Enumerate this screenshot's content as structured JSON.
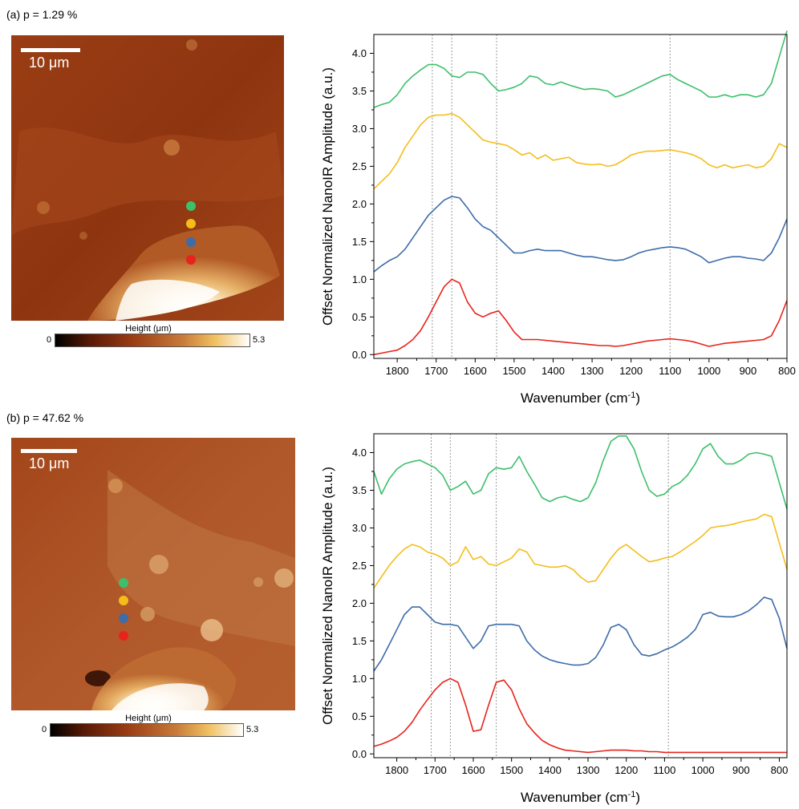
{
  "panels": [
    {
      "label": "(a) p = 1.29 %",
      "scalebar_label": "10 μm",
      "colorbar": {
        "title": "Height (μm)",
        "min": "0",
        "max": "5.3"
      },
      "markers": [
        "#3dbf6b",
        "#f4bd1a",
        "#3d6ca8",
        "#e8231b"
      ]
    },
    {
      "label": "(b) p = 47.62 %",
      "scalebar_label": "10 μm",
      "colorbar": {
        "title": "Height (μm)",
        "min": "0",
        "max": "5.3"
      },
      "markers": [
        "#3dbf6b",
        "#f4bd1a",
        "#3d6ca8",
        "#e8231b"
      ]
    }
  ],
  "chart_data": [
    {
      "type": "line",
      "xlabel": "Wavenumber (cm-1)",
      "ylabel": "Offset Normalized NanoIR Amplitude (a.u.)",
      "xlim": [
        1860,
        800
      ],
      "ylim": [
        -0.05,
        4.25
      ],
      "xticks": [
        1800,
        1700,
        1600,
        1500,
        1400,
        1300,
        1200,
        1100,
        1000,
        900,
        800
      ],
      "yticks": [
        0.0,
        0.5,
        1.0,
        1.5,
        2.0,
        2.5,
        3.0,
        3.5,
        4.0
      ],
      "vlines": [
        1710,
        1660,
        1545,
        1100
      ],
      "x": [
        1860,
        1840,
        1820,
        1800,
        1780,
        1760,
        1740,
        1720,
        1700,
        1680,
        1660,
        1640,
        1620,
        1600,
        1580,
        1560,
        1540,
        1520,
        1500,
        1480,
        1460,
        1440,
        1420,
        1400,
        1380,
        1360,
        1340,
        1320,
        1300,
        1280,
        1260,
        1240,
        1220,
        1200,
        1180,
        1160,
        1140,
        1120,
        1100,
        1080,
        1060,
        1040,
        1020,
        1000,
        980,
        960,
        940,
        920,
        900,
        880,
        860,
        840,
        820,
        800
      ],
      "series": [
        {
          "color": "#e8231b",
          "values": [
            0.0,
            0.02,
            0.04,
            0.06,
            0.12,
            0.2,
            0.32,
            0.5,
            0.7,
            0.9,
            1.0,
            0.95,
            0.7,
            0.55,
            0.5,
            0.55,
            0.58,
            0.45,
            0.3,
            0.2,
            0.2,
            0.2,
            0.19,
            0.18,
            0.17,
            0.16,
            0.15,
            0.14,
            0.13,
            0.12,
            0.12,
            0.11,
            0.12,
            0.14,
            0.16,
            0.18,
            0.19,
            0.2,
            0.21,
            0.2,
            0.19,
            0.17,
            0.14,
            0.11,
            0.13,
            0.15,
            0.16,
            0.17,
            0.18,
            0.19,
            0.2,
            0.25,
            0.45,
            0.72
          ]
        },
        {
          "color": "#3d6ca8",
          "values": [
            1.1,
            1.18,
            1.25,
            1.3,
            1.4,
            1.55,
            1.7,
            1.85,
            1.95,
            2.05,
            2.1,
            2.08,
            1.95,
            1.8,
            1.7,
            1.65,
            1.55,
            1.45,
            1.35,
            1.35,
            1.38,
            1.4,
            1.38,
            1.38,
            1.38,
            1.35,
            1.32,
            1.3,
            1.3,
            1.28,
            1.26,
            1.25,
            1.26,
            1.3,
            1.35,
            1.38,
            1.4,
            1.42,
            1.43,
            1.42,
            1.4,
            1.35,
            1.3,
            1.22,
            1.25,
            1.28,
            1.3,
            1.3,
            1.28,
            1.27,
            1.25,
            1.35,
            1.55,
            1.8
          ]
        },
        {
          "color": "#f4bd1a",
          "values": [
            2.2,
            2.3,
            2.4,
            2.55,
            2.75,
            2.9,
            3.05,
            3.15,
            3.18,
            3.18,
            3.2,
            3.15,
            3.05,
            2.95,
            2.85,
            2.82,
            2.8,
            2.78,
            2.72,
            2.65,
            2.68,
            2.6,
            2.65,
            2.58,
            2.6,
            2.62,
            2.55,
            2.53,
            2.52,
            2.53,
            2.5,
            2.52,
            2.58,
            2.65,
            2.68,
            2.7,
            2.7,
            2.71,
            2.72,
            2.7,
            2.68,
            2.65,
            2.6,
            2.52,
            2.48,
            2.52,
            2.48,
            2.5,
            2.52,
            2.48,
            2.5,
            2.6,
            2.8,
            2.75
          ]
        },
        {
          "color": "#3dbf6b",
          "values": [
            3.28,
            3.32,
            3.35,
            3.45,
            3.6,
            3.7,
            3.78,
            3.85,
            3.85,
            3.8,
            3.7,
            3.68,
            3.75,
            3.75,
            3.72,
            3.6,
            3.5,
            3.52,
            3.55,
            3.6,
            3.7,
            3.68,
            3.6,
            3.58,
            3.62,
            3.58,
            3.55,
            3.52,
            3.53,
            3.52,
            3.5,
            3.42,
            3.45,
            3.5,
            3.55,
            3.6,
            3.65,
            3.7,
            3.72,
            3.65,
            3.6,
            3.55,
            3.5,
            3.42,
            3.42,
            3.45,
            3.42,
            3.45,
            3.45,
            3.42,
            3.45,
            3.6,
            3.95,
            4.3
          ]
        }
      ]
    },
    {
      "type": "line",
      "xlabel": "Wavenumber (cm-1)",
      "ylabel": "Offset Normalized NanoIR Amplitude (a.u.)",
      "xlim": [
        1860,
        780
      ],
      "ylim": [
        -0.05,
        4.25
      ],
      "xticks": [
        1800,
        1700,
        1600,
        1500,
        1400,
        1300,
        1200,
        1100,
        1000,
        900,
        800
      ],
      "yticks": [
        0.0,
        0.5,
        1.0,
        1.5,
        2.0,
        2.5,
        3.0,
        3.5,
        4.0
      ],
      "vlines": [
        1710,
        1660,
        1540,
        1090
      ],
      "x": [
        1860,
        1840,
        1820,
        1800,
        1780,
        1760,
        1740,
        1720,
        1700,
        1680,
        1660,
        1640,
        1620,
        1600,
        1580,
        1560,
        1540,
        1520,
        1500,
        1480,
        1460,
        1440,
        1420,
        1400,
        1380,
        1360,
        1340,
        1320,
        1300,
        1280,
        1260,
        1240,
        1220,
        1200,
        1180,
        1160,
        1140,
        1120,
        1100,
        1080,
        1060,
        1040,
        1020,
        1000,
        980,
        960,
        940,
        920,
        900,
        880,
        860,
        840,
        820,
        800,
        780
      ],
      "series": [
        {
          "color": "#e8231b",
          "values": [
            0.1,
            0.13,
            0.17,
            0.22,
            0.3,
            0.42,
            0.58,
            0.72,
            0.85,
            0.95,
            1.0,
            0.95,
            0.65,
            0.3,
            0.32,
            0.65,
            0.95,
            0.98,
            0.85,
            0.6,
            0.4,
            0.28,
            0.18,
            0.12,
            0.08,
            0.05,
            0.04,
            0.03,
            0.02,
            0.03,
            0.04,
            0.05,
            0.05,
            0.05,
            0.04,
            0.04,
            0.03,
            0.03,
            0.02,
            0.02,
            0.02,
            0.02,
            0.02,
            0.02,
            0.02,
            0.02,
            0.02,
            0.02,
            0.02,
            0.02,
            0.02,
            0.02,
            0.02,
            0.02,
            0.02
          ]
        },
        {
          "color": "#3d6ca8",
          "values": [
            1.1,
            1.25,
            1.45,
            1.65,
            1.85,
            1.95,
            1.95,
            1.85,
            1.75,
            1.72,
            1.72,
            1.7,
            1.55,
            1.4,
            1.5,
            1.7,
            1.72,
            1.72,
            1.72,
            1.7,
            1.5,
            1.38,
            1.3,
            1.25,
            1.22,
            1.2,
            1.18,
            1.18,
            1.2,
            1.28,
            1.45,
            1.68,
            1.72,
            1.65,
            1.45,
            1.32,
            1.3,
            1.33,
            1.38,
            1.42,
            1.48,
            1.55,
            1.65,
            1.85,
            1.88,
            1.83,
            1.82,
            1.82,
            1.85,
            1.9,
            1.98,
            2.08,
            2.05,
            1.8,
            1.4
          ]
        },
        {
          "color": "#f4bd1a",
          "values": [
            2.2,
            2.35,
            2.5,
            2.62,
            2.72,
            2.78,
            2.75,
            2.68,
            2.65,
            2.6,
            2.5,
            2.55,
            2.75,
            2.58,
            2.62,
            2.52,
            2.5,
            2.55,
            2.6,
            2.72,
            2.68,
            2.52,
            2.5,
            2.48,
            2.48,
            2.5,
            2.45,
            2.35,
            2.28,
            2.3,
            2.45,
            2.6,
            2.72,
            2.78,
            2.7,
            2.62,
            2.55,
            2.57,
            2.6,
            2.62,
            2.68,
            2.75,
            2.82,
            2.9,
            3.0,
            3.02,
            3.03,
            3.05,
            3.08,
            3.1,
            3.12,
            3.18,
            3.15,
            2.8,
            2.45
          ]
        },
        {
          "color": "#3dbf6b",
          "values": [
            3.75,
            3.45,
            3.65,
            3.78,
            3.85,
            3.88,
            3.9,
            3.85,
            3.8,
            3.7,
            3.5,
            3.55,
            3.62,
            3.45,
            3.5,
            3.72,
            3.8,
            3.78,
            3.8,
            3.95,
            3.75,
            3.58,
            3.4,
            3.35,
            3.4,
            3.42,
            3.38,
            3.35,
            3.4,
            3.6,
            3.9,
            4.15,
            4.22,
            4.22,
            4.05,
            3.75,
            3.5,
            3.42,
            3.45,
            3.55,
            3.6,
            3.7,
            3.85,
            4.05,
            4.12,
            3.95,
            3.85,
            3.85,
            3.9,
            3.98,
            4.0,
            3.98,
            3.95,
            3.6,
            3.25
          ]
        }
      ]
    }
  ]
}
